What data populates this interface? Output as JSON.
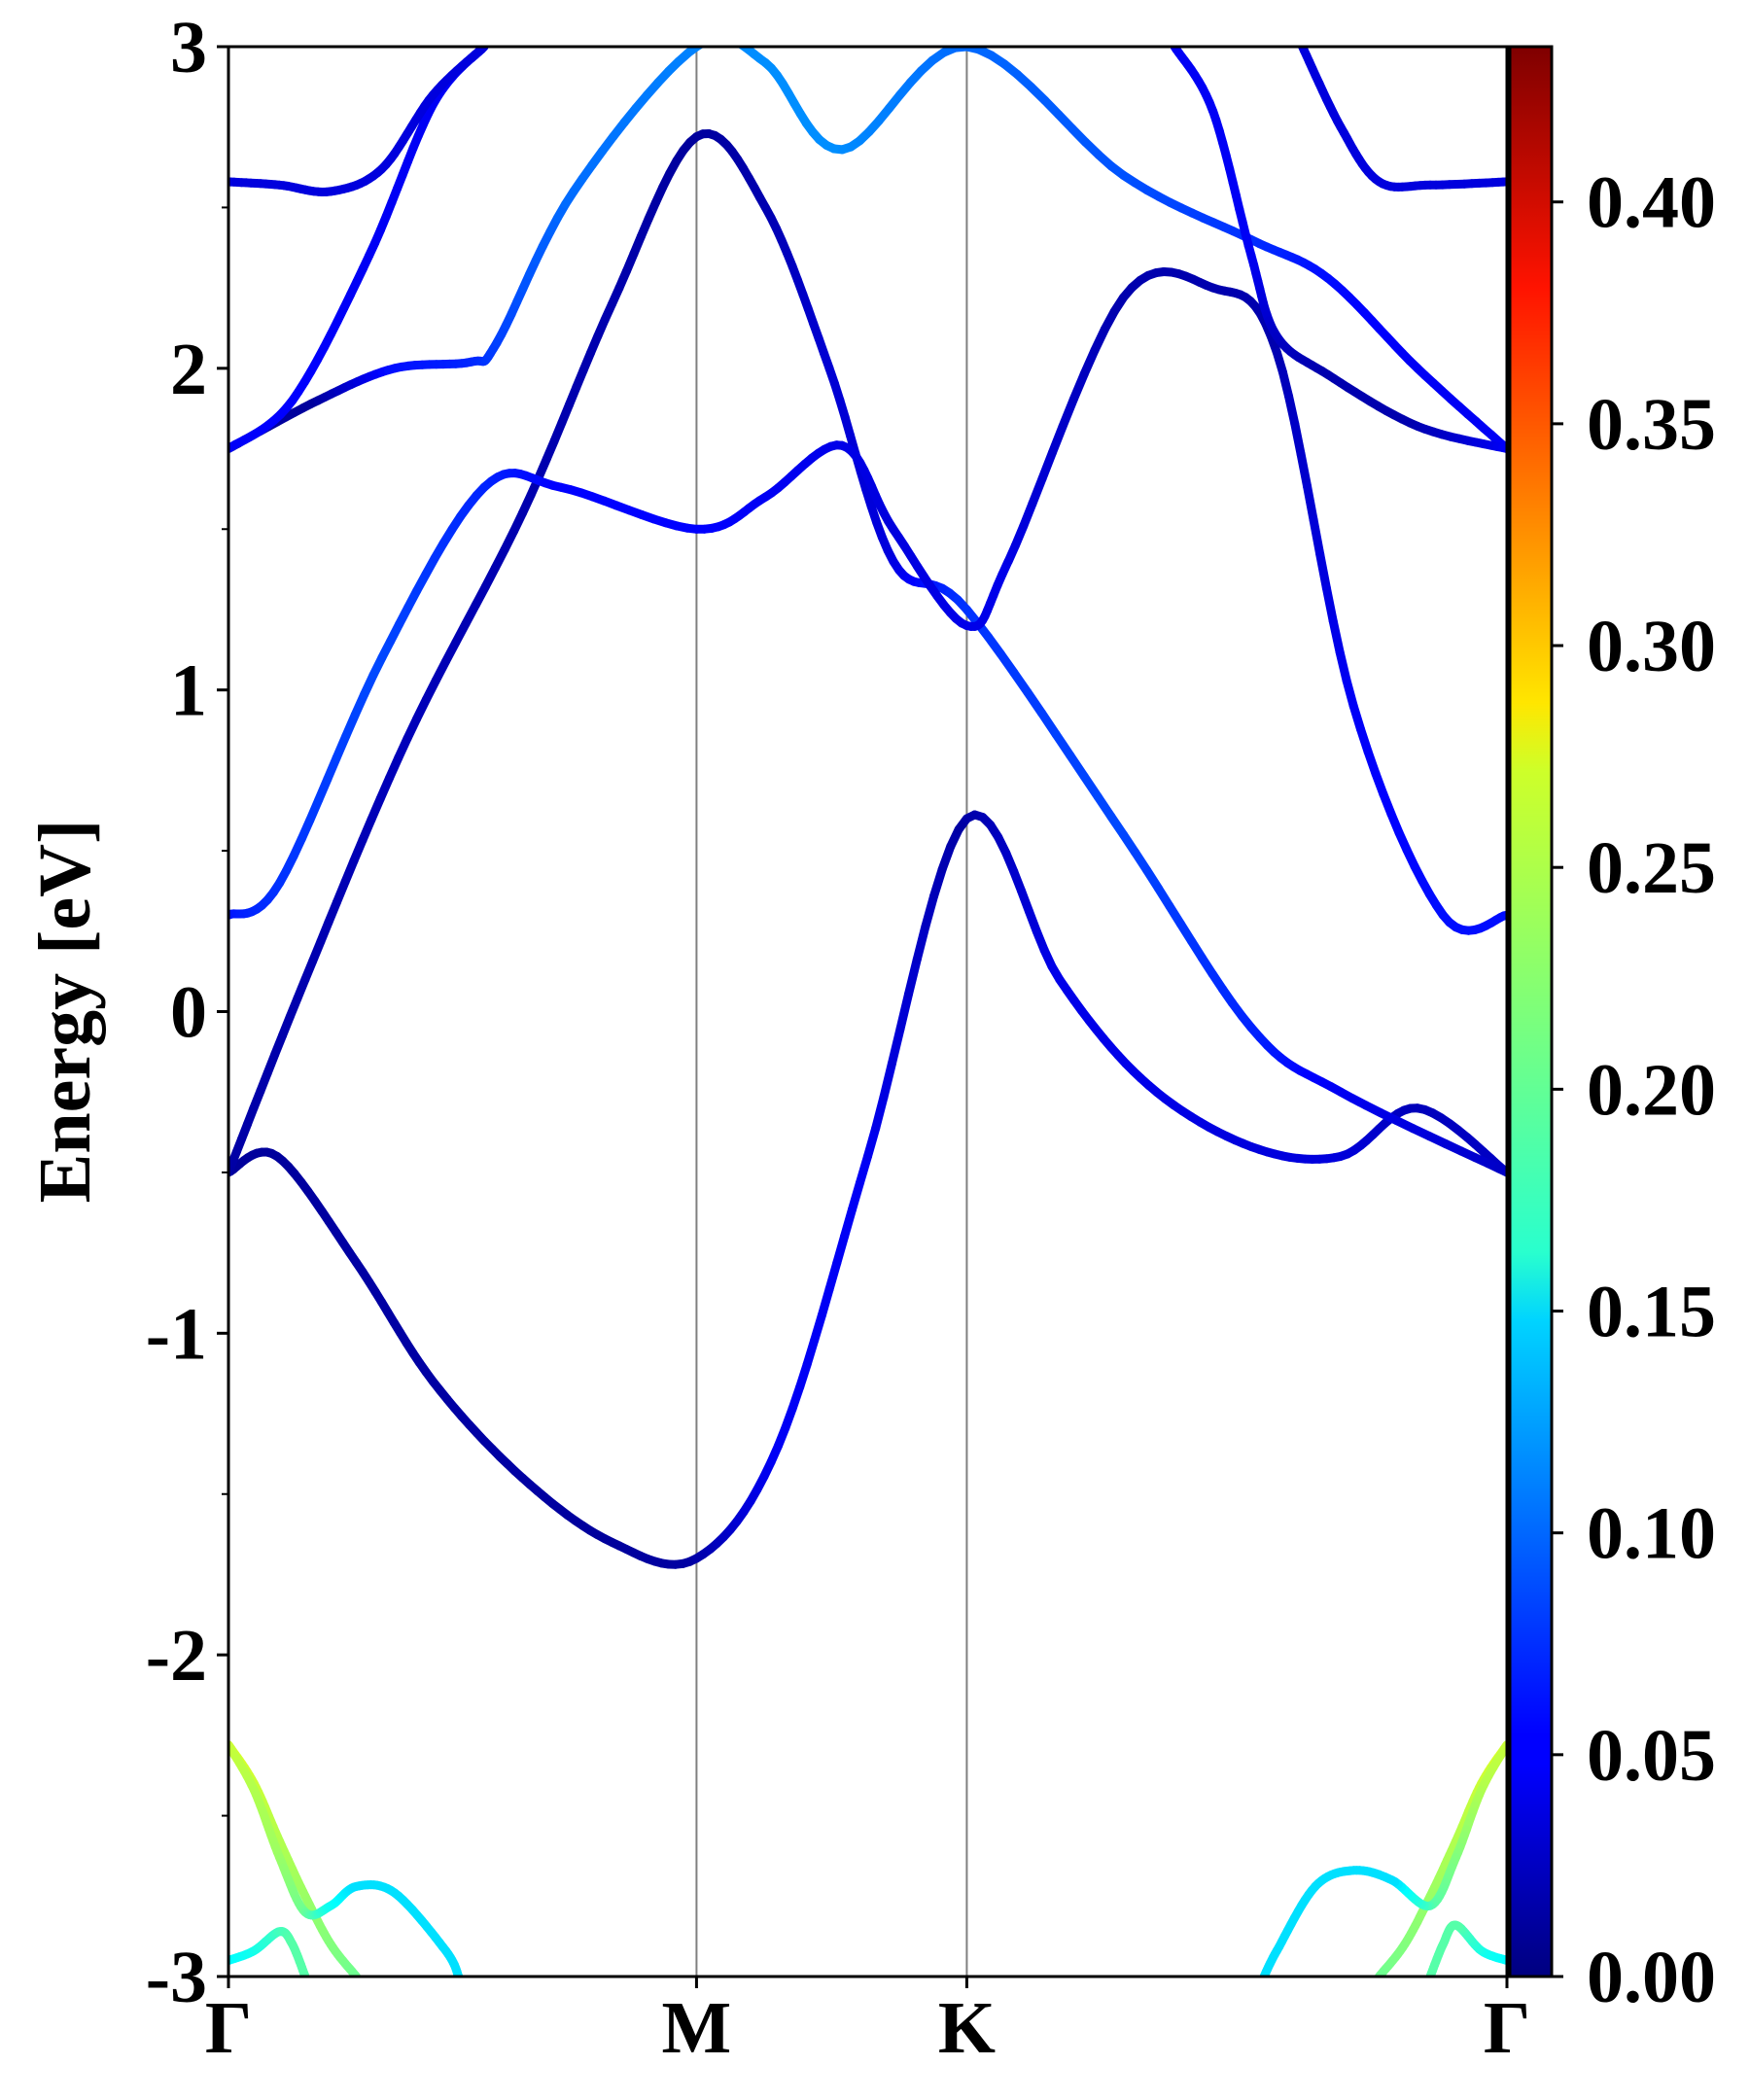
{
  "chart_data": {
    "type": "line",
    "title": "",
    "xlabel": "",
    "ylabel": "Energy [eV]",
    "ylim": [
      -3,
      3
    ],
    "yticks": [
      "-3",
      "-2",
      "-1",
      "0",
      "1",
      "2",
      "3"
    ],
    "x_ticks": [
      {
        "label": "Γ",
        "k": 0.0
      },
      {
        "label": "M",
        "k": 0.3661
      },
      {
        "label": "K",
        "k": 0.5775
      },
      {
        "label": "Γ",
        "k": 1.0
      }
    ],
    "vertical_lines_at": [
      0.3661,
      0.5775
    ],
    "colorbar": {
      "colormap": "jet",
      "min": 0.0,
      "max": 0.435,
      "ticks": [
        "0.00",
        "0.05",
        "0.10",
        "0.15",
        "0.20",
        "0.25",
        "0.30",
        "0.35",
        "0.40"
      ]
    },
    "series": [
      {
        "k": [
          0.0,
          0.038,
          0.1,
          0.16,
          0.23,
          0.3,
          0.3661,
          0.43,
          0.5,
          0.5775,
          0.65,
          0.72,
          0.8,
          0.87,
          0.93,
          1.0
        ],
        "energy": [
          -0.5,
          -0.45,
          -0.78,
          -1.15,
          -1.45,
          -1.65,
          -1.7,
          -1.35,
          -0.45,
          0.6,
          0.1,
          -0.23,
          -0.42,
          -0.45,
          -0.3,
          -0.5
        ],
        "weight": [
          0.012,
          0.012,
          0.015,
          0.015,
          0.015,
          0.012,
          0.015,
          0.05,
          0.05,
          0.015,
          0.045,
          0.045,
          0.04,
          0.04,
          0.025,
          0.03
        ]
      },
      {
        "k": [
          0.0,
          0.06,
          0.14,
          0.23,
          0.3,
          0.3661,
          0.42,
          0.47,
          0.52,
          0.5775,
          0.7,
          0.8,
          0.87,
          1.0
        ],
        "energy": [
          -0.5,
          0.1,
          0.85,
          1.55,
          2.2,
          2.72,
          2.5,
          2.0,
          1.4,
          1.25,
          0.55,
          -0.05,
          -0.25,
          -0.5
        ],
        "weight": [
          0.015,
          0.02,
          0.025,
          0.02,
          0.02,
          0.012,
          0.02,
          0.035,
          0.04,
          0.075,
          0.085,
          0.07,
          0.05,
          0.03
        ]
      },
      {
        "k": [
          0.0,
          0.04,
          0.12,
          0.2,
          0.26,
          0.3661,
          0.42,
          0.48,
          0.52,
          0.5775,
          0.61,
          0.7,
          0.77,
          0.82,
          0.88,
          0.95,
          1.0
        ],
        "energy": [
          0.3,
          0.4,
          1.1,
          1.63,
          1.63,
          1.5,
          1.6,
          1.76,
          1.5,
          1.2,
          1.4,
          2.22,
          2.25,
          2.05,
          0.95,
          0.3,
          0.3
        ],
        "weight": [
          0.06,
          0.075,
          0.085,
          0.07,
          0.055,
          0.055,
          0.05,
          0.045,
          0.04,
          0.045,
          0.045,
          0.02,
          0.02,
          0.02,
          0.05,
          0.06,
          0.06
        ]
      },
      {
        "k": [
          0.0,
          0.07,
          0.13,
          0.19,
          0.21,
          0.27,
          0.3661,
          0.42,
          0.48,
          0.5775,
          0.7,
          0.8,
          0.86,
          0.93,
          1.0
        ],
        "energy": [
          1.75,
          1.9,
          2.0,
          2.02,
          2.08,
          2.55,
          3.0,
          2.95,
          2.68,
          3.0,
          2.6,
          2.4,
          2.28,
          2.0,
          1.75
        ],
        "weight": [
          0.015,
          0.012,
          0.06,
          0.07,
          0.08,
          0.1,
          0.11,
          0.115,
          0.115,
          0.1,
          0.09,
          0.075,
          0.06,
          0.05,
          0.05
        ]
      },
      {
        "k": [
          0.0,
          0.05,
          0.11,
          0.16,
          0.2
        ],
        "energy": [
          1.75,
          1.9,
          2.35,
          2.82,
          3.0
        ],
        "weight": [
          0.05,
          0.055,
          0.05,
          0.05,
          0.05
        ]
      },
      {
        "k": [
          0.0,
          0.04,
          0.08,
          0.12,
          0.16,
          0.2
        ],
        "energy": [
          2.58,
          2.57,
          2.55,
          2.62,
          2.85,
          3.0
        ],
        "weight": [
          0.04,
          0.04,
          0.04,
          0.04,
          0.04,
          0.04
        ]
      },
      {
        "k": [
          0.74,
          0.77,
          0.8,
          0.82,
          0.86,
          0.93,
          1.0
        ],
        "energy": [
          3.0,
          2.8,
          2.35,
          2.1,
          1.98,
          1.82,
          1.75
        ],
        "weight": [
          0.05,
          0.05,
          0.05,
          0.03,
          0.02,
          0.02,
          0.05
        ]
      },
      {
        "k": [
          0.84,
          0.87,
          0.9,
          0.94,
          1.0
        ],
        "energy": [
          3.0,
          2.75,
          2.58,
          2.57,
          2.58
        ],
        "weight": [
          0.04,
          0.04,
          0.04,
          0.04,
          0.04
        ]
      },
      {
        "k": [
          0.0,
          0.02,
          0.04,
          0.06,
          0.08,
          0.1
        ],
        "energy": [
          -2.28,
          -2.4,
          -2.58,
          -2.75,
          -2.9,
          -3.0
        ],
        "weight": [
          0.26,
          0.25,
          0.24,
          0.23,
          0.22,
          0.21
        ]
      },
      {
        "k": [
          0.0,
          0.02,
          0.04,
          0.06,
          0.08,
          0.1,
          0.13,
          0.17,
          0.18
        ],
        "energy": [
          -2.28,
          -2.42,
          -2.63,
          -2.8,
          -2.78,
          -2.72,
          -2.74,
          -2.92,
          -3.0
        ],
        "weight": [
          0.25,
          0.24,
          0.23,
          0.21,
          0.17,
          0.15,
          0.15,
          0.15,
          0.15
        ]
      },
      {
        "k": [
          0.0,
          0.02,
          0.04,
          0.05,
          0.06
        ],
        "energy": [
          -2.95,
          -2.92,
          -2.86,
          -2.9,
          -3.0
        ],
        "weight": [
          0.16,
          0.17,
          0.19,
          0.2,
          0.2
        ]
      },
      {
        "k": [
          1.0,
          0.98,
          0.96,
          0.94,
          0.92,
          0.9
        ],
        "energy": [
          -2.28,
          -2.4,
          -2.58,
          -2.75,
          -2.9,
          -3.0
        ],
        "weight": [
          0.26,
          0.25,
          0.24,
          0.23,
          0.22,
          0.21
        ]
      },
      {
        "k": [
          1.0,
          0.98,
          0.96,
          0.94,
          0.91,
          0.88,
          0.85,
          0.82,
          0.81
        ],
        "energy": [
          -2.28,
          -2.42,
          -2.63,
          -2.78,
          -2.7,
          -2.67,
          -2.72,
          -2.92,
          -3.0
        ],
        "weight": [
          0.25,
          0.24,
          0.22,
          0.2,
          0.15,
          0.15,
          0.15,
          0.15,
          0.15
        ]
      },
      {
        "k": [
          1.0,
          0.98,
          0.96,
          0.95,
          0.94
        ],
        "energy": [
          -2.95,
          -2.92,
          -2.84,
          -2.9,
          -3.0
        ],
        "weight": [
          0.16,
          0.17,
          0.2,
          0.2,
          0.2
        ]
      }
    ]
  }
}
